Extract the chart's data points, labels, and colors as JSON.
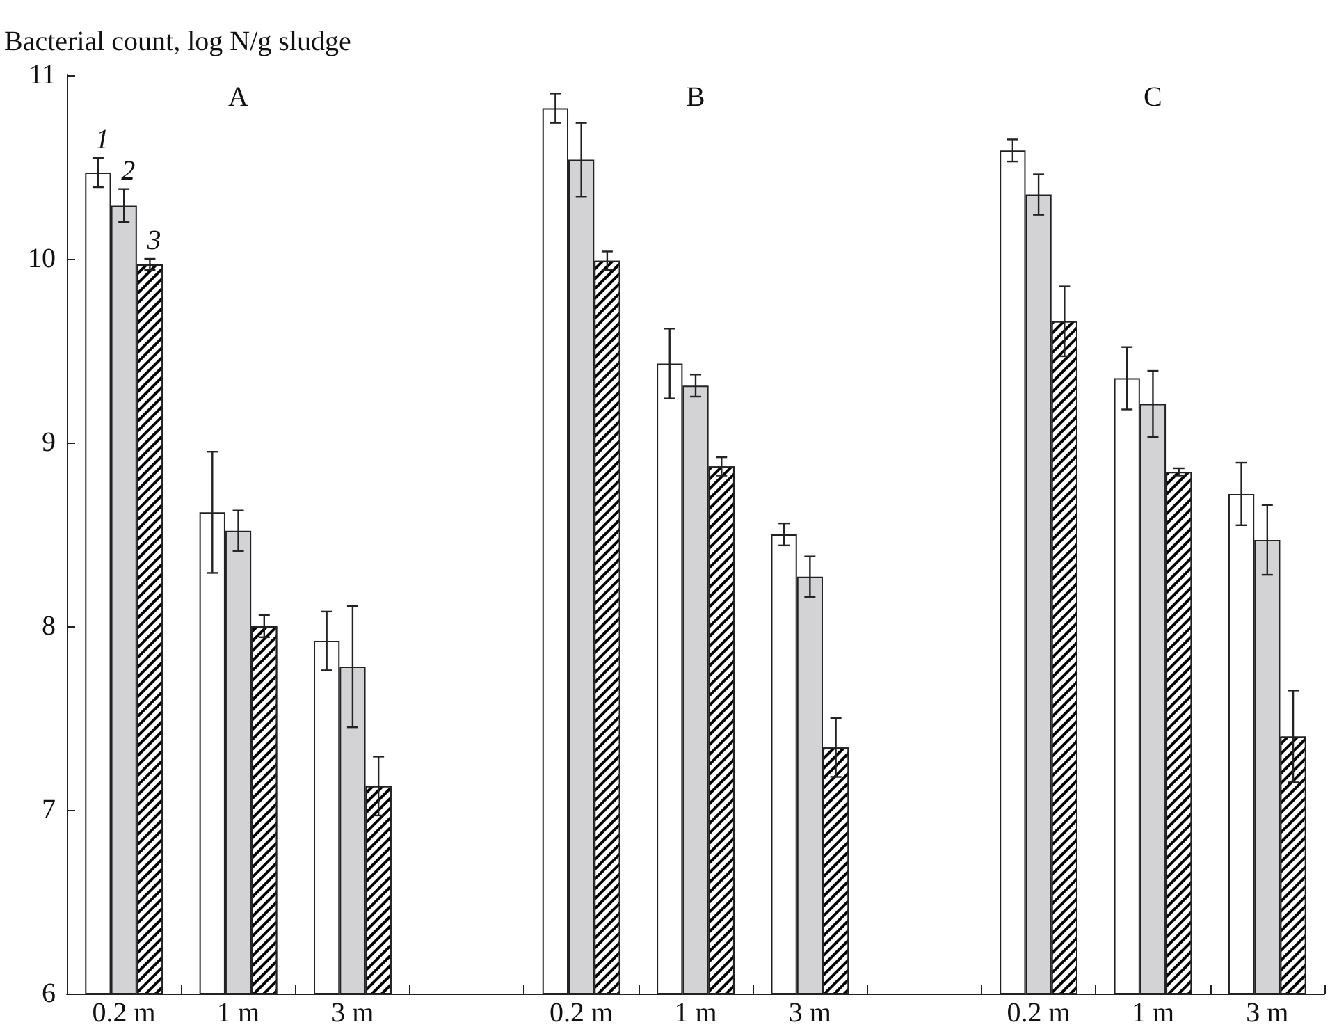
{
  "chart_data": {
    "type": "bar",
    "ylabel": "Bacterial count, log N/g sludge",
    "categories": [
      "0.2 m",
      "1 m",
      "3 m",
      null,
      "0.2 m",
      "1 m",
      "3 m",
      null,
      "0.2 m",
      "1 m",
      "3 m"
    ],
    "series": [
      {
        "name": "1",
        "color": "#ffffff",
        "values": [
          10.47,
          8.62,
          7.92,
          null,
          10.82,
          9.43,
          8.5,
          null,
          10.59,
          9.35,
          8.72
        ],
        "errors": [
          0.08,
          0.33,
          0.16,
          null,
          0.08,
          0.19,
          0.06,
          null,
          0.06,
          0.17,
          0.17
        ]
      },
      {
        "name": "2",
        "color": "#d3d3d5",
        "values": [
          10.29,
          8.52,
          7.78,
          null,
          10.54,
          9.31,
          8.27,
          null,
          10.35,
          9.21,
          8.47
        ],
        "errors": [
          0.09,
          0.11,
          0.33,
          null,
          0.2,
          0.06,
          0.11,
          null,
          0.11,
          0.18,
          0.19
        ]
      },
      {
        "name": "3",
        "color": "#000000",
        "values": [
          9.97,
          8.0,
          7.13,
          null,
          9.99,
          8.87,
          7.34,
          null,
          9.66,
          8.84,
          7.4
        ],
        "errors": [
          0.03,
          0.06,
          0.16,
          null,
          0.05,
          0.05,
          0.16,
          null,
          0.19,
          0.02,
          0.25
        ]
      }
    ],
    "annotations": [
      "A",
      "B",
      "C"
    ],
    "ylim": [
      6,
      11
    ],
    "yticks": [
      6,
      7,
      8,
      9,
      10,
      11
    ],
    "grid": false,
    "legend": false
  }
}
